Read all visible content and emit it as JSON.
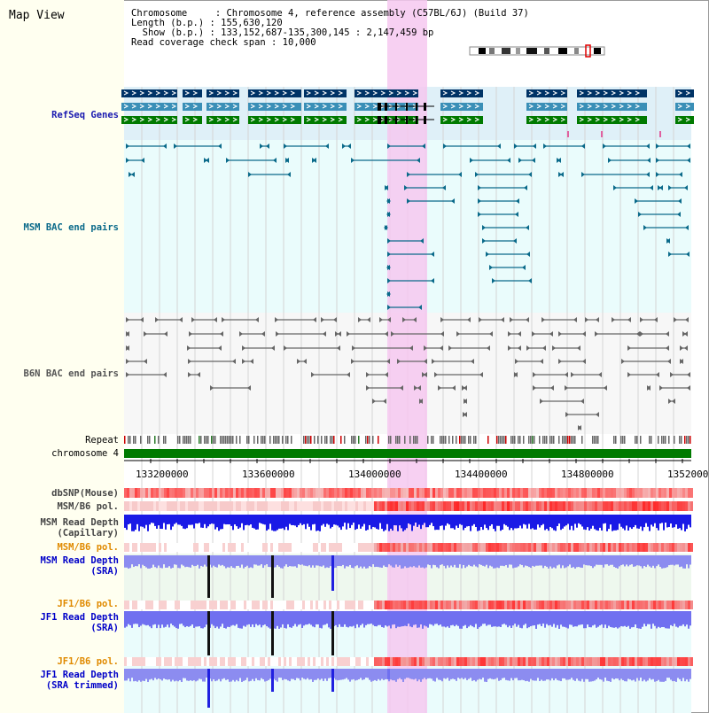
{
  "app_title": "Map View",
  "info_lines": [
    "Chromosome     : Chromosome 4, reference assembly (C57BL/6J) (Build 37)",
    "Length (b.p.) : 155,630,120",
    "  Show (b.p.) : 133,152,687-135,300,145 : 2,147,459 bp",
    "Read coverage check span : 10,000"
  ],
  "tracks": {
    "refseq": "RefSeq Genes",
    "msm_bac": "MSM BAC end pairs",
    "b6n_bac": "B6N BAC end pairs",
    "repeat": "Repeat",
    "chromosome": "chromosome 4",
    "dbsnp": "dbSNP(Mouse)",
    "msm_b6_pol_1": "MSM/B6 pol.",
    "msm_depth_cap_1": "MSM Read Depth",
    "msm_depth_cap_2": "(Capillary)",
    "msm_b6_pol_2": "MSM/B6 pol.",
    "msm_depth_sra_1": "MSM Read Depth",
    "msm_depth_sra_2": "(SRA)",
    "jf1_b6_pol_1": "JF1/B6 pol.",
    "jf1_depth_sra_1": "JF1 Read Depth",
    "jf1_depth_sra_2": "(SRA)",
    "jf1_b6_pol_2": "JF1/B6 pol.",
    "jf1_depth_trim_1": "JF1 Read Depth",
    "jf1_depth_trim_2": "(SRA trimmed)"
  },
  "axis_ticks": [
    "133200000",
    "133600000",
    "134000000",
    "134400000",
    "134800000",
    "1352000"
  ],
  "colors": {
    "highlight": "#f6c8f0",
    "gene_dark": "#003366",
    "gene_mid": "#3a8fb7",
    "gene_green": "#007a00",
    "msm_line": "#0a6a8a",
    "b6n_line": "#666666",
    "depth_blue": "#2020e0"
  }
}
